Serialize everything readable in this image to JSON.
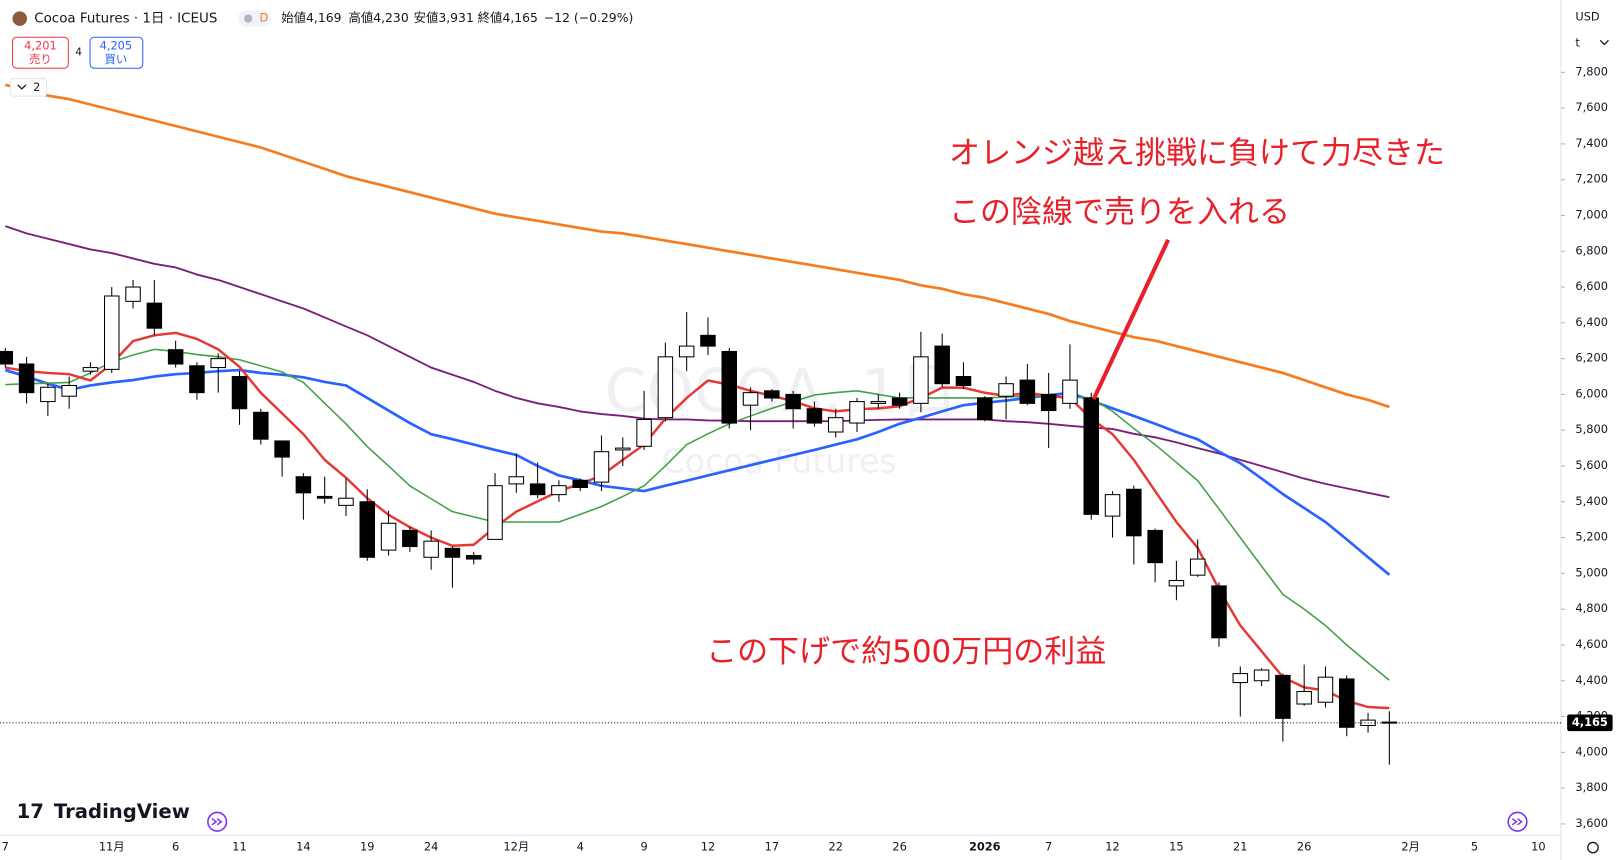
{
  "header": {
    "symbol": "Cocoa Futures · 1日 · ICEUS",
    "badge": "D",
    "open": "始値4,169",
    "high": "高値4,230",
    "low": "安値3,931",
    "close": "終値4,165",
    "change": "−12 (−0.29%)"
  },
  "trade_panel": {
    "sell_price": "4,201",
    "sell": "売り",
    "spread": "4",
    "buy_price": "4,205",
    "buy": "買い",
    "indicators": "2"
  },
  "axis_header": {
    "currency": "USD",
    "unit": "t"
  },
  "brand": "TradingView",
  "chart_data": {
    "type": "candlestick",
    "watermark": {
      "symbol": "COCOA, 1日",
      "name": "Cocoa Futures"
    },
    "annotations": [
      "オレンジ越え挑戦に負けて力尽きた",
      "この陰線で売りを入れる",
      "この下げで約500万円の利益"
    ],
    "categories": [
      "7",
      null,
      null,
      null,
      null,
      "11月",
      null,
      null,
      "6",
      null,
      null,
      "11",
      null,
      null,
      "14",
      null,
      null,
      "19",
      null,
      null,
      "24",
      null,
      null,
      null,
      "12月",
      null,
      null,
      "4",
      null,
      null,
      "9",
      null,
      null,
      "12",
      null,
      null,
      "17",
      null,
      null,
      "22",
      null,
      null,
      "26",
      null,
      null,
      null,
      "2026",
      null,
      null,
      "7",
      null,
      null,
      "12",
      null,
      null,
      "15",
      null,
      null,
      "21",
      null,
      null,
      "26",
      null,
      null,
      null,
      null,
      "2月",
      null,
      null,
      "5",
      null,
      null,
      "10"
    ],
    "ohlc": {
      "open": [
        6240,
        6170,
        5960,
        5990,
        6130,
        6140,
        6520,
        6510,
        6250,
        6160,
        6150,
        6100,
        5900,
        5740,
        5540,
        5430,
        5380,
        5400,
        5130,
        5240,
        5090,
        5140,
        5100,
        5190,
        5500,
        5500,
        5440,
        5520,
        5510,
        5690,
        5710,
        5870,
        6210,
        6330,
        6240,
        5940,
        6020,
        6000,
        5920,
        5790,
        5840,
        5950,
        5980,
        5950,
        6270,
        6100,
        5980,
        5990,
        6080,
        6000,
        5950,
        5980,
        5320,
        5470,
        5240,
        4930,
        4990,
        4930,
        4390,
        4400,
        4430,
        4270,
        4280,
        4410,
        4150,
        4169,
        null,
        null,
        null,
        null,
        null,
        null,
        null
      ],
      "high": [
        6260,
        6210,
        6060,
        6100,
        6180,
        6600,
        6640,
        6640,
        6300,
        6180,
        6230,
        6130,
        5920,
        5740,
        5560,
        5540,
        5530,
        5470,
        5350,
        5260,
        5240,
        5150,
        5120,
        5560,
        5670,
        5620,
        5520,
        5530,
        5770,
        5760,
        6020,
        6290,
        6460,
        6430,
        6260,
        6040,
        6030,
        6020,
        5960,
        5920,
        5980,
        6000,
        6010,
        6350,
        6340,
        6180,
        5990,
        6100,
        6170,
        6120,
        6280,
        6010,
        5460,
        5490,
        5250,
        5070,
        5190,
        4950,
        4480,
        4470,
        4440,
        4490,
        4480,
        4430,
        4220,
        4230,
        null,
        null,
        null,
        null,
        null,
        null,
        null
      ],
      "low": [
        6150,
        5950,
        5880,
        5920,
        6110,
        6120,
        6480,
        6330,
        6150,
        5970,
        6010,
        5830,
        5720,
        5540,
        5300,
        5390,
        5320,
        5070,
        5100,
        5120,
        5020,
        4920,
        5050,
        5190,
        5450,
        5420,
        5400,
        5460,
        5460,
        5600,
        5690,
        5850,
        6130,
        6220,
        5810,
        5800,
        5960,
        5810,
        5820,
        5760,
        5790,
        5920,
        5920,
        5900,
        6040,
        6030,
        5850,
        5860,
        5940,
        5700,
        5920,
        5300,
        5200,
        5050,
        4950,
        4850,
        4980,
        4590,
        4200,
        4370,
        4060,
        4260,
        4250,
        4090,
        4110,
        3931,
        null,
        null,
        null,
        null,
        null,
        null,
        null
      ],
      "close": [
        6170,
        6010,
        6040,
        6050,
        6150,
        6550,
        6600,
        6370,
        6170,
        6010,
        6200,
        5920,
        5750,
        5650,
        5450,
        5420,
        5420,
        5090,
        5280,
        5150,
        5180,
        5090,
        5080,
        5490,
        5540,
        5440,
        5490,
        5480,
        5680,
        5700,
        5860,
        6210,
        6270,
        6270,
        5840,
        6010,
        5980,
        5920,
        5840,
        5870,
        5960,
        5960,
        5940,
        6210,
        6060,
        6050,
        5860,
        6060,
        5950,
        5910,
        6080,
        5330,
        5440,
        5210,
        5060,
        4960,
        5080,
        4640,
        4440,
        4460,
        4190,
        4340,
        4420,
        4140,
        4180,
        4165,
        null,
        null,
        null,
        null,
        null,
        null,
        null
      ]
    },
    "up_color": "#ffffff",
    "down_color": "#000000",
    "wick_color": "#000000",
    "lines": [
      {
        "color": "#f57c1f",
        "width": 2.6,
        "values": [
          7730,
          7700,
          7670,
          7650,
          7620,
          7590,
          7560,
          7530,
          7500,
          7470,
          7440,
          7410,
          7380,
          7340,
          7300,
          7260,
          7220,
          7190,
          7160,
          7130,
          7100,
          7070,
          7040,
          7010,
          6990,
          6970,
          6950,
          6930,
          6910,
          6900,
          6880,
          6860,
          6840,
          6820,
          6800,
          6780,
          6760,
          6740,
          6720,
          6700,
          6680,
          6660,
          6640,
          6610,
          6590,
          6560,
          6540,
          6510,
          6480,
          6450,
          6410,
          6380,
          6350,
          6320,
          6300,
          6270,
          6240,
          6210,
          6180,
          6150,
          6120,
          6080,
          6040,
          6000,
          5970,
          5930,
          null,
          null,
          null,
          null,
          null,
          null,
          null
        ]
      },
      {
        "color": "#7b1e7a",
        "width": 1.8,
        "values": [
          6940,
          6900,
          6870,
          6840,
          6810,
          6790,
          6760,
          6730,
          6710,
          6670,
          6640,
          6600,
          6560,
          6520,
          6480,
          6430,
          6380,
          6330,
          6270,
          6210,
          6150,
          6110,
          6070,
          6020,
          5980,
          5950,
          5930,
          5905,
          5890,
          5880,
          5865,
          5860,
          5860,
          5855,
          5853,
          5850,
          5850,
          5850,
          5850,
          5850,
          5855,
          5858,
          5860,
          5860,
          5860,
          5860,
          5860,
          5850,
          5845,
          5836,
          5825,
          5815,
          5807,
          5780,
          5760,
          5732,
          5700,
          5670,
          5634,
          5600,
          5565,
          5530,
          5500,
          5475,
          5450,
          5426,
          null,
          null,
          null,
          null,
          null,
          null,
          null
        ]
      },
      {
        "color": "#2962ff",
        "width": 2.6,
        "values": [
          6136,
          6100,
          6060,
          6026,
          6050,
          6067,
          6080,
          6100,
          6113,
          6120,
          6130,
          6136,
          6120,
          6110,
          6096,
          6070,
          6050,
          5980,
          5910,
          5840,
          5778,
          5750,
          5720,
          5690,
          5662,
          5600,
          5547,
          5520,
          5489,
          5475,
          5460,
          5490,
          5518,
          5547,
          5576,
          5605,
          5633,
          5662,
          5690,
          5720,
          5749,
          5790,
          5836,
          5870,
          5905,
          5940,
          5953,
          5966,
          5980,
          5995,
          6009,
          5965,
          5922,
          5880,
          5836,
          5790,
          5749,
          5680,
          5616,
          5530,
          5443,
          5365,
          5287,
          5190,
          5090,
          4992,
          null,
          null,
          null,
          null,
          null,
          null,
          null
        ]
      },
      {
        "color": "#43a047",
        "width": 1.5,
        "values": [
          6055,
          6060,
          6063,
          6067,
          6120,
          6182,
          6220,
          6252,
          6240,
          6223,
          6210,
          6194,
          6160,
          6125,
          6067,
          5950,
          5836,
          5709,
          5600,
          5489,
          5417,
          5345,
          5316,
          5287,
          5287,
          5287,
          5287,
          5330,
          5374,
          5430,
          5489,
          5600,
          5720,
          5780,
          5836,
          5880,
          5922,
          5960,
          5997,
          6010,
          6020,
          6000,
          5980,
          5980,
          5980,
          5980,
          5980,
          5985,
          5990,
          5992,
          5986,
          5980,
          5905,
          5810,
          5720,
          5620,
          5518,
          5360,
          5200,
          5040,
          4883,
          4800,
          4709,
          4600,
          4500,
          4403,
          null,
          null,
          null,
          null,
          null,
          null,
          null
        ]
      },
      {
        "color": "#e53935",
        "width": 2.4,
        "values": [
          6150,
          6130,
          6120,
          6113,
          6078,
          6171,
          6298,
          6330,
          6344,
          6310,
          6252,
          6154,
          6009,
          5894,
          5778,
          5634,
          5535,
          5420,
          5327,
          5258,
          5200,
          5154,
          5160,
          5258,
          5345,
          5402,
          5460,
          5500,
          5547,
          5634,
          5720,
          5865,
          5980,
          6078,
          6055,
          6020,
          5992,
          5963,
          5922,
          5905,
          5917,
          5922,
          5934,
          5980,
          6038,
          6038,
          6009,
          5992,
          6009,
          5992,
          5980,
          5865,
          5778,
          5634,
          5460,
          5287,
          5142,
          4911,
          4709,
          4565,
          4420,
          4363,
          4345,
          4288,
          4253,
          4247,
          null,
          null,
          null,
          null,
          null,
          null,
          null
        ]
      }
    ],
    "price_label": {
      "value": 4165,
      "label": "4,165"
    },
    "ylim": [
      3537,
      8204
    ],
    "yticks": [
      {
        "value": 3600,
        "label": "3,600"
      },
      {
        "value": 3800,
        "label": "3,800"
      },
      {
        "value": 4000,
        "label": "4,000"
      },
      {
        "value": 4200,
        "label": "4,200"
      },
      {
        "value": 4400,
        "label": "4,400"
      },
      {
        "value": 4600,
        "label": "4,600"
      },
      {
        "value": 4800,
        "label": "4,800"
      },
      {
        "value": 5000,
        "label": "5,000"
      },
      {
        "value": 5200,
        "label": "5,200"
      },
      {
        "value": 5400,
        "label": "5,400"
      },
      {
        "value": 5600,
        "label": "5,600"
      },
      {
        "value": 5800,
        "label": "5,800"
      },
      {
        "value": 6000,
        "label": "6,000"
      },
      {
        "value": 6200,
        "label": "6,200"
      },
      {
        "value": 6400,
        "label": "6,400"
      },
      {
        "value": 6600,
        "label": "6,600"
      },
      {
        "value": 6800,
        "label": "6,800"
      },
      {
        "value": 7000,
        "label": "7,000"
      },
      {
        "value": 7200,
        "label": "7,200"
      },
      {
        "value": 7400,
        "label": "7,400"
      },
      {
        "value": 7600,
        "label": "7,600"
      },
      {
        "value": 7800,
        "label": "7,800"
      }
    ],
    "grid": false
  }
}
